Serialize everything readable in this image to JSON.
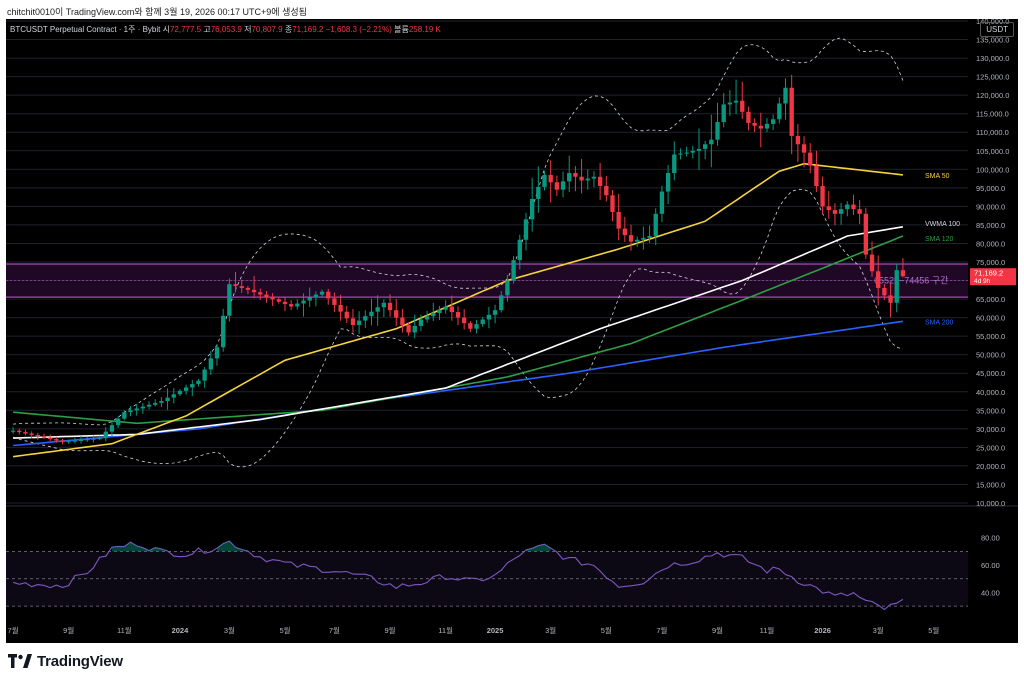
{
  "caption": "chitchit0010이 TradingView.com와 함께 3월 19, 2026 00:17 UTC+9에 생성됨",
  "header": {
    "symbol": "BTCUSDT Perpetual Contract · 1주 · Bybit",
    "open_label": "시",
    "open": "72,777.5",
    "high_label": "고",
    "high": "76,053.9",
    "low_label": "저",
    "low": "70,807.9",
    "close_label": "종",
    "close": "71,169.2",
    "change": "−1,608.3 (−2.21%)",
    "volume_label": "볼륨",
    "volume": "258.19 K"
  },
  "currency_button": "USDT",
  "brand": "TradingView",
  "colors": {
    "up": "#089981",
    "down": "#f23645",
    "sma50": "#f5d33a",
    "vwma100": "#ffffff",
    "sma120": "#2e9e44",
    "sma200": "#2962ff",
    "zone": "#9c27b0",
    "rsi": "#7e57c2"
  },
  "chart_data": [
    {
      "type": "candlestick",
      "interval": "weekly",
      "ylim": [
        10000,
        140000
      ],
      "y_ticks": [
        "140,000.0",
        "135,000.0",
        "130,000.0",
        "125,000.0",
        "120,000.0",
        "115,000.0",
        "110,000.0",
        "105,000.0",
        "100,000.0",
        "95,000.0",
        "90,000.0",
        "85,000.0",
        "80,000.0",
        "75,000.0",
        "70,000.0",
        "65,000.0",
        "60,000.0",
        "55,000.0",
        "50,000.0",
        "45,000.0",
        "40,000.0",
        "35,000.0",
        "30,000.0",
        "25,000.0",
        "20,000.0",
        "15,000.0",
        "10,000.0"
      ],
      "x_ticks": [
        "7월",
        "9월",
        "11월",
        "2024",
        "3월",
        "5월",
        "7월",
        "9월",
        "11월",
        "2025",
        "3월",
        "5월",
        "7월",
        "9월",
        "11월",
        "2026",
        "3월",
        "5월"
      ],
      "anchors": [
        [
          0,
          29500
        ],
        [
          8,
          26500
        ],
        [
          14,
          27500
        ],
        [
          18,
          34500
        ],
        [
          24,
          37500
        ],
        [
          30,
          43000
        ],
        [
          33,
          52000
        ],
        [
          35,
          69000
        ],
        [
          38,
          67500
        ],
        [
          45,
          63000
        ],
        [
          50,
          67000
        ],
        [
          55,
          58000
        ],
        [
          60,
          64000
        ],
        [
          64,
          56000
        ],
        [
          66,
          59500
        ],
        [
          70,
          63000
        ],
        [
          74,
          57000
        ],
        [
          78,
          62000
        ],
        [
          80,
          70000
        ],
        [
          84,
          92000
        ],
        [
          86,
          98500
        ],
        [
          88,
          94500
        ],
        [
          90,
          99000
        ],
        [
          92,
          97000
        ],
        [
          94,
          98000
        ],
        [
          96,
          93000
        ],
        [
          98,
          84000
        ],
        [
          100,
          80500
        ],
        [
          103,
          82000
        ],
        [
          105,
          94000
        ],
        [
          107,
          104000
        ],
        [
          109,
          104500
        ],
        [
          111,
          105500
        ],
        [
          113,
          108000
        ],
        [
          115,
          117500
        ],
        [
          117,
          118500
        ],
        [
          119,
          112500
        ],
        [
          121,
          111000
        ],
        [
          123,
          113500
        ],
        [
          125,
          122000
        ],
        [
          126,
          109000
        ],
        [
          128,
          104500
        ],
        [
          129,
          101000
        ],
        [
          131,
          90000
        ],
        [
          133,
          88000
        ],
        [
          135,
          90500
        ],
        [
          137,
          88000
        ],
        [
          138,
          77000
        ],
        [
          140,
          68000
        ],
        [
          142,
          64000
        ],
        [
          143,
          72800
        ],
        [
          144,
          71169
        ]
      ],
      "indicators": [
        {
          "name": "SMA 50",
          "last": 98500
        },
        {
          "name": "VWMA 100",
          "last": 84500
        },
        {
          "name": "SMA 120",
          "last": 82000
        },
        {
          "name": "SMA 200",
          "last": 59000
        }
      ],
      "zone": {
        "low": 65529,
        "high": 74456,
        "label": "65529~74456 구간"
      },
      "last_price": "71,169.2",
      "countdown": "4d 9h"
    },
    {
      "type": "line",
      "name": "RSI",
      "ylim": [
        25,
        90
      ],
      "y_ticks": [
        "80.00",
        "60.00",
        "40.00"
      ],
      "levels": [
        70,
        50,
        30
      ],
      "anchors": [
        [
          0,
          47
        ],
        [
          8,
          45
        ],
        [
          12,
          55
        ],
        [
          16,
          72
        ],
        [
          20,
          76
        ],
        [
          24,
          70
        ],
        [
          28,
          68
        ],
        [
          32,
          72
        ],
        [
          35,
          77
        ],
        [
          40,
          66
        ],
        [
          45,
          60
        ],
        [
          52,
          56
        ],
        [
          58,
          50
        ],
        [
          62,
          44
        ],
        [
          66,
          47
        ],
        [
          70,
          52
        ],
        [
          74,
          48
        ],
        [
          78,
          52
        ],
        [
          82,
          68
        ],
        [
          86,
          74
        ],
        [
          90,
          64
        ],
        [
          94,
          60
        ],
        [
          98,
          45
        ],
        [
          102,
          48
        ],
        [
          106,
          60
        ],
        [
          110,
          63
        ],
        [
          114,
          69
        ],
        [
          118,
          65
        ],
        [
          122,
          56
        ],
        [
          124,
          57
        ],
        [
          127,
          49
        ],
        [
          130,
          43
        ],
        [
          133,
          37
        ],
        [
          136,
          39
        ],
        [
          138,
          33
        ],
        [
          141,
          28
        ],
        [
          143,
          31
        ],
        [
          144,
          34
        ]
      ]
    }
  ]
}
